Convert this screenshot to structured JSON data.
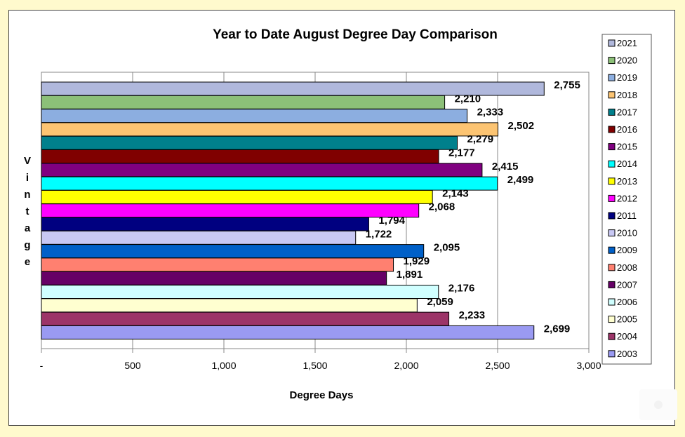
{
  "chart_data": {
    "type": "bar",
    "orientation": "horizontal",
    "title": "Year to Date August Degree Day Comparison",
    "xlabel": "Degree Days",
    "ylabel": "Vintage",
    "xlim": [
      0,
      3000
    ],
    "xticks": [
      0,
      500,
      1000,
      1500,
      2000,
      2500,
      3000
    ],
    "xtick_labels": [
      "-",
      "500",
      "1,000",
      "1,500",
      "2,000",
      "2,500",
      "3,000"
    ],
    "grid": "vertical",
    "legend_position": "right",
    "categories": [
      "2021",
      "2020",
      "2019",
      "2018",
      "2017",
      "2016",
      "2015",
      "2014",
      "2013",
      "2012",
      "2011",
      "2010",
      "2009",
      "2008",
      "2007",
      "2006",
      "2005",
      "2004",
      "2003"
    ],
    "values": [
      2755,
      2210,
      2333,
      2502,
      2279,
      2177,
      2415,
      2499,
      2143,
      2068,
      1794,
      1722,
      2095,
      1929,
      1891,
      2176,
      2059,
      2233,
      2699
    ],
    "value_labels": [
      "2,755",
      "2,210",
      "2,333",
      "2,502",
      "2,279",
      "2,177",
      "2,415",
      "2,499",
      "2,143",
      "2,068",
      "1,794",
      "1,722",
      "2,095",
      "1,929",
      "1,891",
      "2,176",
      "2,059",
      "2,233",
      "2,699"
    ],
    "colors": [
      "#b0b8dc",
      "#8cc078",
      "#8caee0",
      "#fcc472",
      "#00808c",
      "#800000",
      "#800080",
      "#00ffff",
      "#ffff00",
      "#ff00ff",
      "#000080",
      "#c8c8f4",
      "#0060c8",
      "#ff8070",
      "#660066",
      "#d0ffff",
      "#ffffd0",
      "#9c3468",
      "#9a9af2"
    ]
  }
}
